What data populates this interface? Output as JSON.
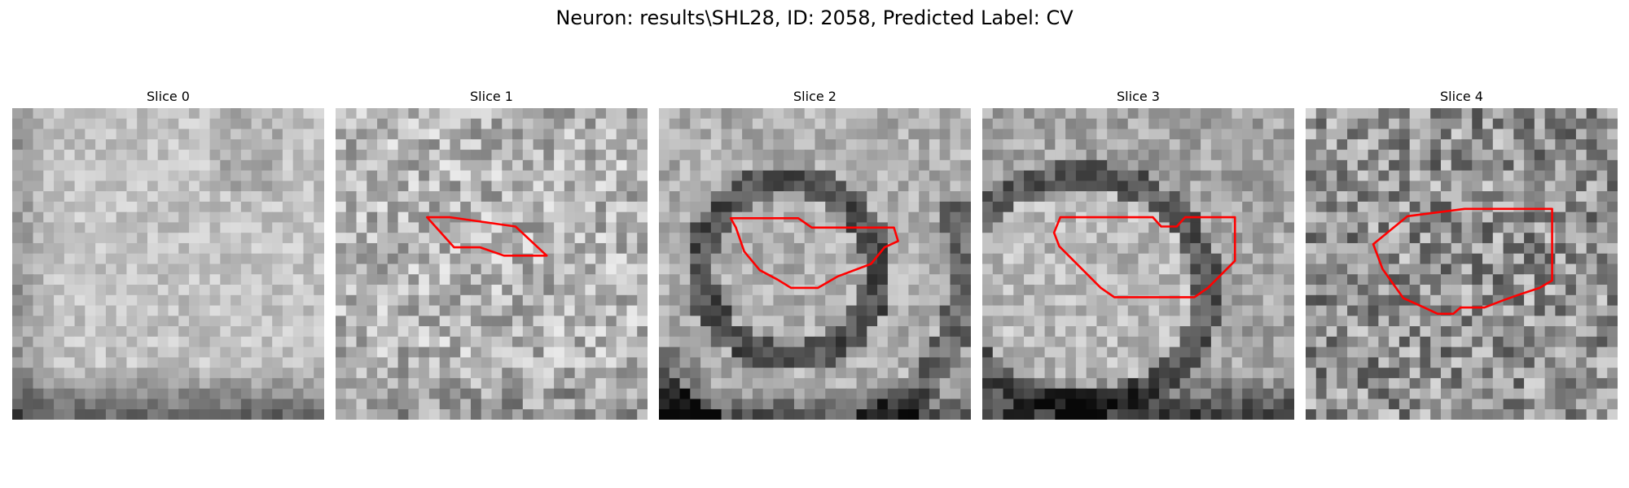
{
  "figure": {
    "title": "Neuron: results\\SHL28, ID: 2058, Predicted Label: CV",
    "colormap": "gray",
    "roi_color": "#ff0000"
  },
  "slices": [
    {
      "title": "Slice 0",
      "has_roi": false
    },
    {
      "title": "Slice 1",
      "has_roi": true
    },
    {
      "title": "Slice 2",
      "has_roi": true
    },
    {
      "title": "Slice 3",
      "has_roi": true
    },
    {
      "title": "Slice 4",
      "has_roi": true
    }
  ]
}
